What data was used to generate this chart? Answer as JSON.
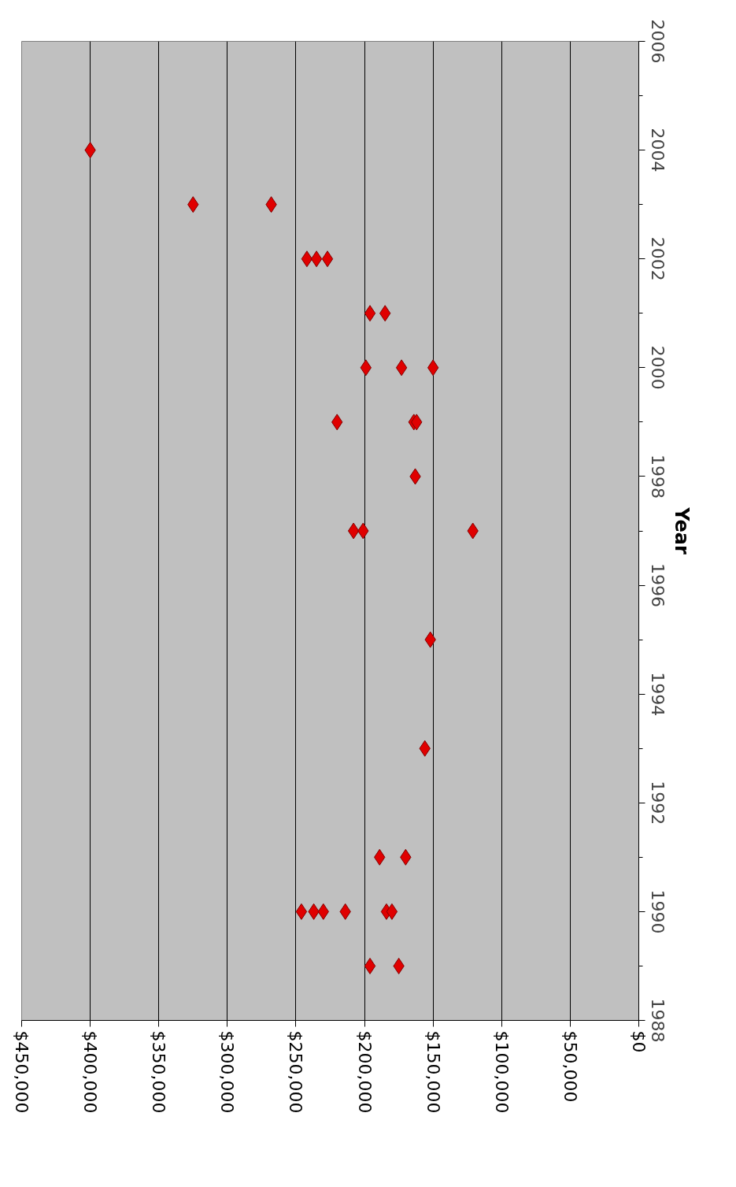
{
  "chart_data": {
    "type": "scatter",
    "ylabel": "Year",
    "x": [
      400000,
      325000,
      268000,
      242000,
      235000,
      227000,
      196000,
      185000,
      199000,
      173000,
      150000,
      220000,
      164000,
      162000,
      163000,
      208000,
      201000,
      121000,
      152000,
      156000,
      189000,
      170000,
      246000,
      237000,
      230000,
      214000,
      184000,
      180000,
      196000,
      175000
    ],
    "values": [
      2004,
      2003,
      2003,
      2002,
      2002,
      2002,
      2001,
      2001,
      2000,
      2000,
      2000,
      1999,
      1999,
      1999,
      1998,
      1997,
      1997,
      1997,
      1995,
      1993,
      1991,
      1991,
      1990,
      1990,
      1990,
      1990,
      1990,
      1990,
      1989,
      1989
    ],
    "color": "#e00000",
    "marker": "diamond",
    "ylim": [
      1988,
      2006
    ],
    "yticks": [
      1988,
      1990,
      1992,
      1994,
      1996,
      1998,
      2000,
      2002,
      2004,
      2006
    ],
    "xlim": [
      450000,
      0
    ],
    "xticks": [
      {
        "value": 450000,
        "label": "$450,000"
      },
      {
        "value": 400000,
        "label": "$400,000"
      },
      {
        "value": 350000,
        "label": "$350,000"
      },
      {
        "value": 300000,
        "label": "$300,000"
      },
      {
        "value": 250000,
        "label": "$250,000"
      },
      {
        "value": 200000,
        "label": "$200,000"
      },
      {
        "value": 150000,
        "label": "$150,000"
      },
      {
        "value": 100000,
        "label": "$100,000"
      },
      {
        "value": 50000,
        "label": "$50,000"
      },
      {
        "value": 0,
        "label": "$0"
      }
    ],
    "grid": "x"
  }
}
